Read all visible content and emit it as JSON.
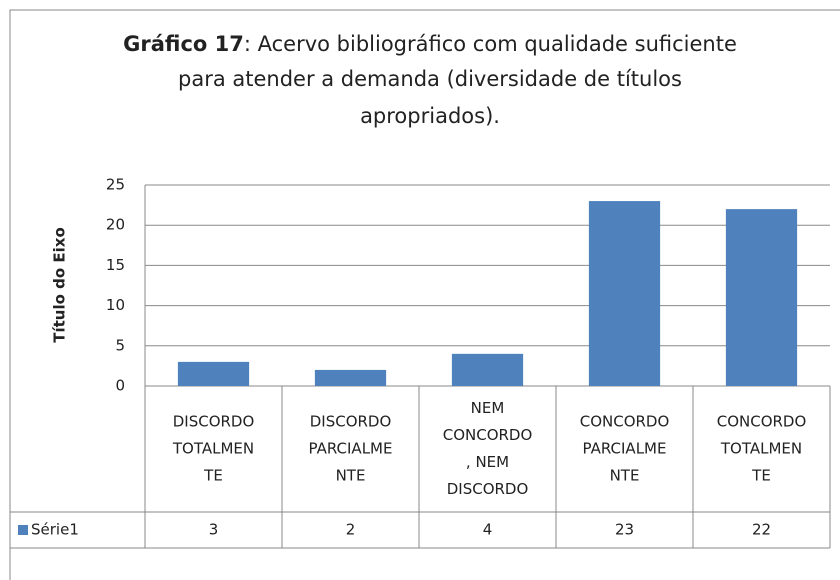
{
  "chart_data": {
    "type": "bar",
    "title": [
      "Gráfico 17",
      ": Acervo bibliográfico com qualidade suficiente",
      "para atender a demanda (diversidade de títulos",
      "apropriados)."
    ],
    "y_axis_label": "Título do Eixo",
    "categories": [
      [
        "DISCORDO",
        "TOTALMEN",
        "TE"
      ],
      [
        "DISCORDO",
        "PARCIALME",
        "NTE"
      ],
      [
        "NEM",
        "CONCORDO",
        ", NEM",
        "DISCORDO"
      ],
      [
        "CONCORDO",
        "PARCIALME",
        "NTE"
      ],
      [
        "CONCORDO",
        "TOTALMEN",
        "TE"
      ]
    ],
    "series": [
      {
        "name": "Série1",
        "color": "#4f81bd",
        "values": [
          3,
          2,
          4,
          23,
          22
        ]
      }
    ],
    "ylim": [
      0,
      25
    ],
    "yticks": [
      0,
      5,
      10,
      15,
      20,
      25
    ],
    "grid": true
  }
}
